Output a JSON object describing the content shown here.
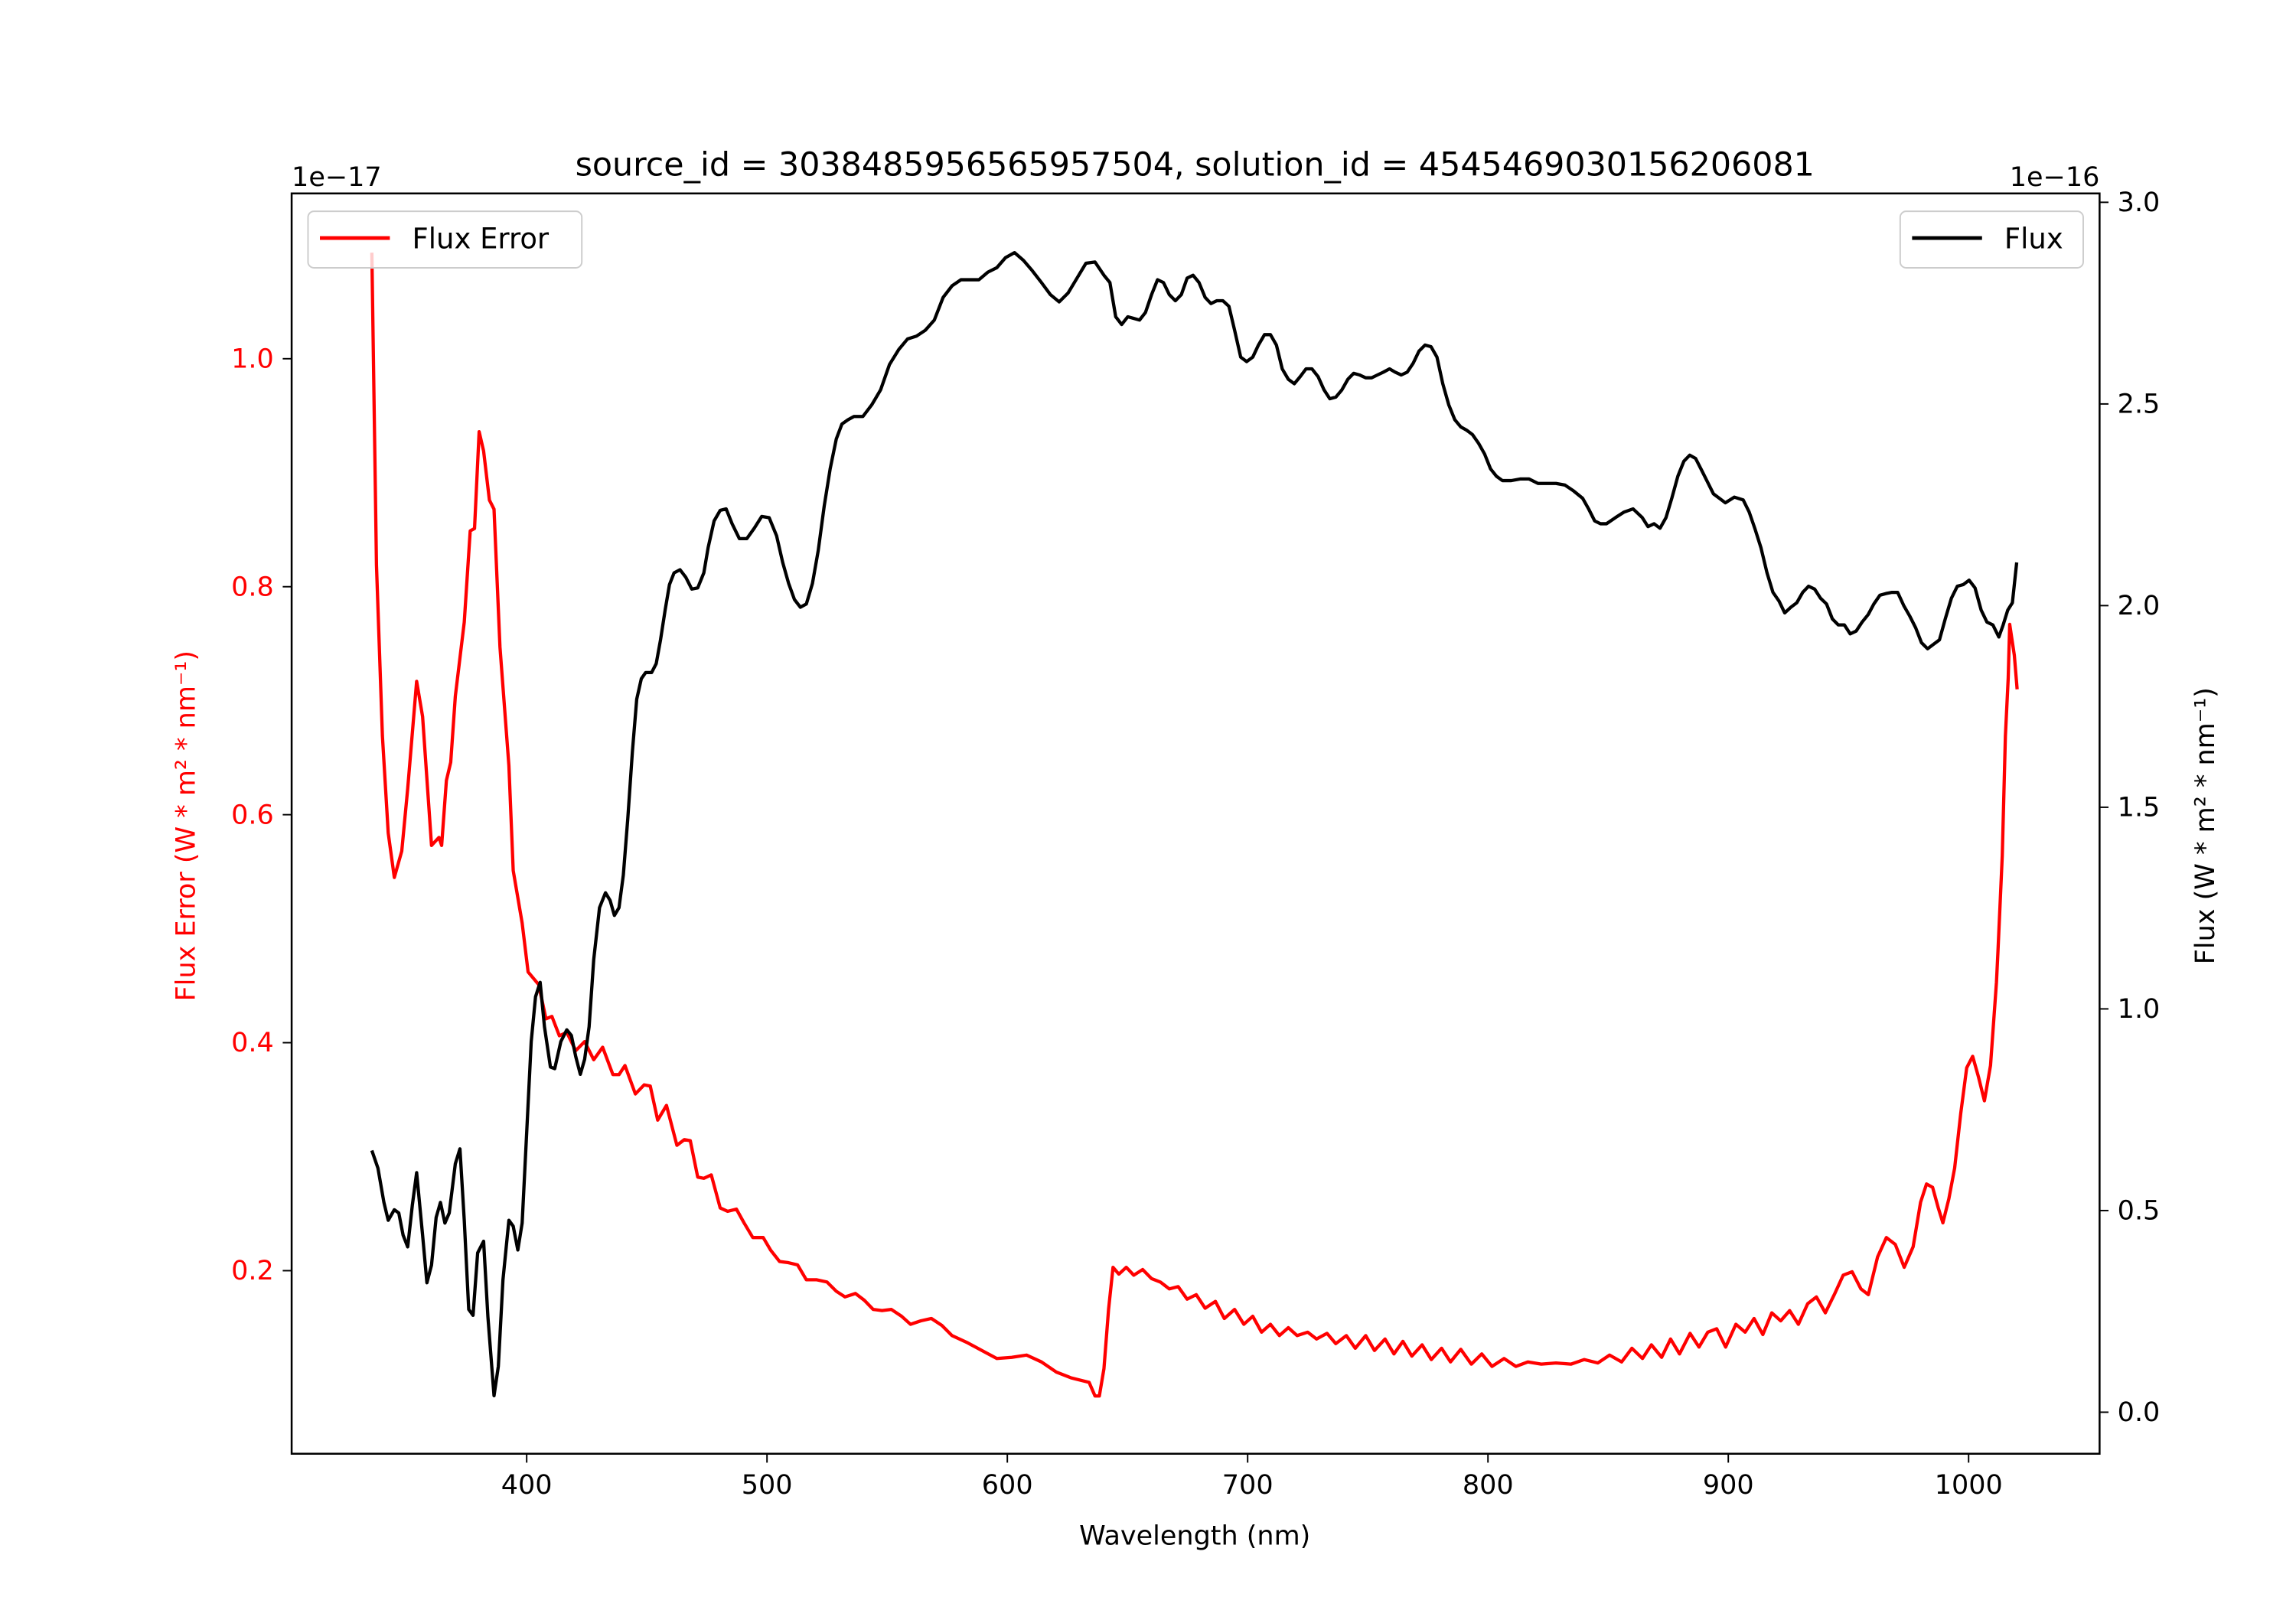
{
  "chart_data": {
    "type": "line",
    "title": "source_id = 3038485956565957504, solution_id = 4545469030156206081",
    "xlabel": "Wavelength (nm)",
    "ylabel_left": "Flux Error (W * m² * nm⁻¹)",
    "ylabel_right": "Flux (W * m² * nm⁻¹)",
    "offset_left": "1e−17",
    "offset_right": "1e−16",
    "xlim": [
      302.2,
      1054.5
    ],
    "ylim_left": [
      0.0394,
      1.145
    ],
    "ylim_right": [
      -0.103,
      3.022
    ],
    "xticks": [
      400,
      500,
      600,
      700,
      800,
      900,
      1000
    ],
    "yticks_left": [
      "0.2",
      "0.4",
      "0.6",
      "0.8",
      "1.0"
    ],
    "yticks_right": [
      "0.0",
      "0.5",
      "1.0",
      "1.5",
      "2.0",
      "2.5",
      "3.0"
    ],
    "grid": false,
    "legend_left": {
      "label": "Flux Error",
      "placement": "upper-left"
    },
    "legend_right": {
      "label": "Flux",
      "placement": "upper-right"
    },
    "colors": {
      "flux_error": "#ff0000",
      "flux": "#000000"
    },
    "series": [
      {
        "name": "Flux Error",
        "axis": "left",
        "x": [
          335.6,
          337.5,
          340.0,
          342.4,
          344.9,
          348.0,
          350.5,
          354.2,
          356.7,
          360.4,
          363.5,
          364.6,
          366.6,
          368.4,
          370.3,
          374.0,
          376.5,
          378.3,
          380.2,
          382.1,
          384.5,
          386.4,
          388.9,
          392.6,
          394.4,
          398.1,
          400.6,
          405.0,
          408.0,
          410.5,
          413.6,
          416.7,
          420.4,
          424.1,
          427.9,
          431.6,
          435.9,
          438.4,
          440.9,
          445.2,
          448.9,
          451.4,
          454.5,
          458.2,
          462.5,
          465.6,
          468.1,
          471.2,
          473.7,
          476.8,
          480.5,
          483.6,
          487.3,
          490.4,
          494.1,
          498.4,
          501.5,
          505.2,
          508.9,
          512.7,
          516.4,
          520.7,
          525.0,
          528.8,
          532.5,
          536.8,
          540.5,
          544.2,
          547.9,
          551.7,
          556.0,
          559.7,
          564.0,
          568.4,
          572.7,
          577.0,
          583.2,
          589.4,
          595.6,
          601.8,
          608.0,
          614.2,
          620.4,
          626.5,
          634.0,
          636.5,
          638.3,
          640.2,
          642.1,
          644.0,
          646.4,
          649.5,
          652.6,
          656.3,
          660.0,
          663.7,
          667.4,
          671.1,
          674.8,
          678.6,
          682.3,
          686.6,
          690.3,
          694.6,
          698.4,
          702.1,
          705.8,
          709.5,
          713.2,
          716.9,
          720.6,
          725.0,
          728.7,
          733.0,
          736.7,
          741.1,
          744.8,
          749.1,
          752.8,
          757.2,
          760.9,
          764.6,
          768.3,
          772.6,
          776.4,
          780.7,
          784.4,
          788.7,
          793.1,
          797.4,
          801.7,
          806.7,
          811.6,
          816.6,
          822.2,
          828.3,
          834.5,
          840.1,
          845.7,
          850.6,
          855.6,
          859.9,
          864.3,
          868.0,
          872.3,
          876.0,
          879.7,
          884.1,
          887.8,
          891.5,
          895.2,
          898.9,
          903.2,
          907.0,
          910.7,
          914.4,
          918.1,
          921.8,
          925.5,
          929.2,
          933.0,
          936.7,
          940.4,
          944.1,
          947.8,
          951.5,
          955.2,
          958.3,
          962.1,
          965.8,
          969.5,
          973.2,
          976.9,
          980.0,
          982.5,
          985.0,
          987.4,
          989.3,
          991.8,
          994.2,
          996.7,
          999.2,
          1001.7,
          1004.1,
          1006.6,
          1009.1,
          1011.6,
          1012.2,
          1014.0,
          1015.3,
          1016.5,
          1017.1,
          1019.0,
          1020.2
        ],
        "y": [
          1.093,
          0.819,
          0.669,
          0.584,
          0.545,
          0.568,
          0.623,
          0.717,
          0.686,
          0.573,
          0.58,
          0.573,
          0.63,
          0.646,
          0.704,
          0.769,
          0.849,
          0.851,
          0.936,
          0.919,
          0.876,
          0.868,
          0.747,
          0.643,
          0.551,
          0.505,
          0.462,
          0.451,
          0.421,
          0.423,
          0.406,
          0.409,
          0.393,
          0.401,
          0.385,
          0.396,
          0.372,
          0.372,
          0.38,
          0.355,
          0.363,
          0.362,
          0.332,
          0.345,
          0.31,
          0.315,
          0.314,
          0.282,
          0.281,
          0.284,
          0.255,
          0.252,
          0.254,
          0.242,
          0.229,
          0.229,
          0.218,
          0.208,
          0.207,
          0.205,
          0.192,
          0.192,
          0.19,
          0.182,
          0.177,
          0.18,
          0.174,
          0.166,
          0.165,
          0.166,
          0.16,
          0.153,
          0.156,
          0.158,
          0.152,
          0.143,
          0.137,
          0.13,
          0.123,
          0.124,
          0.126,
          0.12,
          0.111,
          0.106,
          0.102,
          0.09,
          0.09,
          0.114,
          0.166,
          0.203,
          0.197,
          0.203,
          0.196,
          0.201,
          0.193,
          0.19,
          0.184,
          0.186,
          0.175,
          0.179,
          0.167,
          0.173,
          0.158,
          0.166,
          0.153,
          0.16,
          0.146,
          0.153,
          0.143,
          0.15,
          0.143,
          0.146,
          0.14,
          0.145,
          0.136,
          0.143,
          0.132,
          0.143,
          0.13,
          0.14,
          0.127,
          0.138,
          0.125,
          0.135,
          0.122,
          0.132,
          0.12,
          0.131,
          0.118,
          0.127,
          0.116,
          0.123,
          0.116,
          0.12,
          0.118,
          0.119,
          0.118,
          0.122,
          0.119,
          0.126,
          0.12,
          0.132,
          0.123,
          0.135,
          0.124,
          0.14,
          0.127,
          0.145,
          0.133,
          0.146,
          0.149,
          0.133,
          0.153,
          0.146,
          0.158,
          0.144,
          0.163,
          0.156,
          0.165,
          0.153,
          0.171,
          0.177,
          0.163,
          0.179,
          0.196,
          0.199,
          0.184,
          0.179,
          0.212,
          0.229,
          0.223,
          0.203,
          0.221,
          0.26,
          0.276,
          0.273,
          0.255,
          0.242,
          0.263,
          0.29,
          0.338,
          0.378,
          0.388,
          0.37,
          0.349,
          0.38,
          0.453,
          0.48,
          0.564,
          0.669,
          0.72,
          0.767,
          0.74,
          0.71
        ]
      },
      {
        "name": "Flux",
        "axis": "right",
        "x": [
          335.6,
          338.1,
          340.6,
          342.4,
          344.9,
          346.8,
          348.6,
          350.5,
          352.4,
          354.2,
          356.7,
          358.5,
          360.4,
          362.3,
          364.1,
          366.0,
          367.8,
          370.3,
          372.2,
          374.0,
          375.9,
          377.7,
          379.6,
          382.1,
          383.9,
          386.4,
          388.2,
          390.1,
          392.6,
          394.4,
          396.3,
          398.1,
          400.0,
          401.9,
          403.7,
          405.6,
          407.4,
          409.9,
          411.7,
          414.2,
          416.7,
          418.6,
          420.4,
          422.3,
          424.1,
          426.0,
          427.9,
          430.3,
          432.8,
          434.7,
          436.5,
          438.4,
          440.2,
          442.1,
          444.0,
          445.8,
          447.7,
          449.5,
          452.0,
          453.9,
          455.7,
          457.6,
          459.4,
          461.3,
          463.8,
          466.2,
          468.7,
          471.2,
          473.7,
          475.5,
          478.0,
          480.5,
          483.0,
          485.5,
          488.5,
          491.6,
          494.7,
          497.8,
          500.9,
          504.0,
          506.5,
          509.0,
          511.4,
          513.9,
          516.4,
          518.9,
          521.3,
          523.8,
          526.3,
          528.8,
          531.2,
          533.7,
          536.2,
          539.9,
          543.6,
          547.3,
          551.0,
          554.8,
          558.5,
          562.2,
          565.9,
          569.6,
          573.3,
          577.0,
          580.7,
          584.4,
          588.2,
          591.9,
          595.6,
          599.3,
          603.0,
          606.7,
          610.4,
          614.2,
          617.9,
          621.6,
          625.3,
          629.0,
          632.7,
          636.5,
          640.2,
          642.7,
          645.1,
          647.6,
          650.1,
          652.6,
          655.0,
          657.5,
          660.0,
          662.5,
          665.0,
          667.4,
          669.9,
          672.4,
          674.8,
          677.3,
          679.8,
          682.3,
          684.7,
          687.2,
          689.7,
          692.2,
          694.6,
          697.1,
          699.6,
          702.1,
          704.5,
          707.0,
          709.5,
          712.0,
          714.4,
          716.9,
          719.4,
          721.9,
          724.3,
          726.8,
          729.3,
          731.8,
          734.2,
          736.7,
          739.2,
          741.7,
          744.1,
          746.6,
          749.1,
          751.6,
          754.0,
          756.5,
          759.0,
          761.4,
          763.9,
          766.4,
          768.9,
          771.3,
          773.8,
          776.3,
          778.8,
          781.2,
          783.7,
          786.2,
          788.7,
          791.1,
          793.6,
          796.1,
          798.6,
          801.1,
          803.5,
          806.0,
          809.7,
          813.4,
          817.1,
          820.8,
          824.6,
          828.3,
          832.0,
          835.7,
          839.4,
          841.9,
          844.4,
          846.8,
          849.3,
          853.0,
          856.7,
          860.4,
          864.2,
          866.6,
          869.1,
          871.6,
          874.1,
          876.5,
          879.0,
          881.5,
          884.0,
          886.4,
          888.9,
          891.4,
          893.8,
          896.3,
          898.8,
          902.5,
          906.2,
          908.7,
          911.2,
          913.6,
          916.1,
          918.6,
          921.1,
          923.5,
          926.0,
          928.5,
          931.0,
          933.4,
          935.9,
          938.4,
          940.9,
          943.3,
          945.8,
          948.3,
          950.7,
          953.2,
          955.7,
          958.2,
          960.6,
          963.1,
          965.6,
          968.1,
          970.5,
          973.0,
          975.5,
          978.0,
          980.4,
          982.9,
          985.4,
          987.9,
          990.3,
          992.8,
          995.3,
          997.8,
          1000.2,
          1002.7,
          1005.2,
          1007.6,
          1010.1,
          1012.6,
          1014.4,
          1016.3,
          1018.2,
          1020.0
        ],
        "y": [
          0.649,
          0.605,
          0.52,
          0.476,
          0.502,
          0.494,
          0.439,
          0.41,
          0.513,
          0.594,
          0.439,
          0.321,
          0.365,
          0.483,
          0.52,
          0.469,
          0.494,
          0.616,
          0.653,
          0.476,
          0.255,
          0.24,
          0.395,
          0.424,
          0.236,
          0.041,
          0.114,
          0.328,
          0.476,
          0.461,
          0.402,
          0.469,
          0.697,
          0.919,
          1.03,
          1.066,
          0.956,
          0.856,
          0.852,
          0.919,
          0.948,
          0.934,
          0.882,
          0.838,
          0.875,
          0.956,
          1.122,
          1.251,
          1.288,
          1.269,
          1.232,
          1.251,
          1.332,
          1.472,
          1.638,
          1.768,
          1.819,
          1.834,
          1.834,
          1.856,
          1.915,
          1.989,
          2.052,
          2.081,
          2.089,
          2.07,
          2.041,
          2.044,
          2.081,
          2.144,
          2.21,
          2.236,
          2.24,
          2.203,
          2.166,
          2.166,
          2.192,
          2.221,
          2.218,
          2.173,
          2.107,
          2.055,
          2.015,
          1.996,
          2.004,
          2.055,
          2.137,
          2.247,
          2.339,
          2.413,
          2.45,
          2.461,
          2.469,
          2.469,
          2.498,
          2.535,
          2.598,
          2.635,
          2.661,
          2.668,
          2.683,
          2.708,
          2.764,
          2.793,
          2.808,
          2.808,
          2.808,
          2.827,
          2.838,
          2.863,
          2.875,
          2.856,
          2.83,
          2.801,
          2.771,
          2.753,
          2.775,
          2.812,
          2.849,
          2.852,
          2.819,
          2.801,
          2.716,
          2.697,
          2.716,
          2.712,
          2.708,
          2.727,
          2.771,
          2.808,
          2.801,
          2.771,
          2.756,
          2.771,
          2.812,
          2.819,
          2.801,
          2.764,
          2.749,
          2.756,
          2.756,
          2.742,
          2.683,
          2.616,
          2.605,
          2.616,
          2.646,
          2.672,
          2.672,
          2.646,
          2.587,
          2.561,
          2.55,
          2.568,
          2.587,
          2.587,
          2.568,
          2.535,
          2.513,
          2.517,
          2.535,
          2.561,
          2.576,
          2.572,
          2.565,
          2.565,
          2.572,
          2.579,
          2.587,
          2.579,
          2.572,
          2.579,
          2.601,
          2.631,
          2.646,
          2.642,
          2.616,
          2.55,
          2.498,
          2.461,
          2.443,
          2.435,
          2.424,
          2.402,
          2.376,
          2.339,
          2.321,
          2.31,
          2.31,
          2.314,
          2.314,
          2.303,
          2.303,
          2.303,
          2.299,
          2.284,
          2.266,
          2.24,
          2.21,
          2.203,
          2.203,
          2.218,
          2.232,
          2.24,
          2.218,
          2.196,
          2.203,
          2.192,
          2.218,
          2.266,
          2.321,
          2.358,
          2.373,
          2.365,
          2.336,
          2.306,
          2.277,
          2.266,
          2.255,
          2.269,
          2.262,
          2.232,
          2.188,
          2.144,
          2.081,
          2.033,
          2.011,
          1.982,
          1.996,
          2.007,
          2.033,
          2.048,
          2.041,
          2.018,
          2.004,
          1.967,
          1.952,
          1.952,
          1.93,
          1.937,
          1.959,
          1.978,
          2.004,
          2.026,
          2.03,
          2.033,
          2.033,
          2.0,
          1.974,
          1.945,
          1.908,
          1.893,
          1.904,
          1.915,
          1.967,
          2.018,
          2.048,
          2.052,
          2.063,
          2.044,
          1.989,
          1.959,
          1.952,
          1.922,
          1.952,
          1.989,
          2.007,
          2.107
        ]
      }
    ]
  }
}
